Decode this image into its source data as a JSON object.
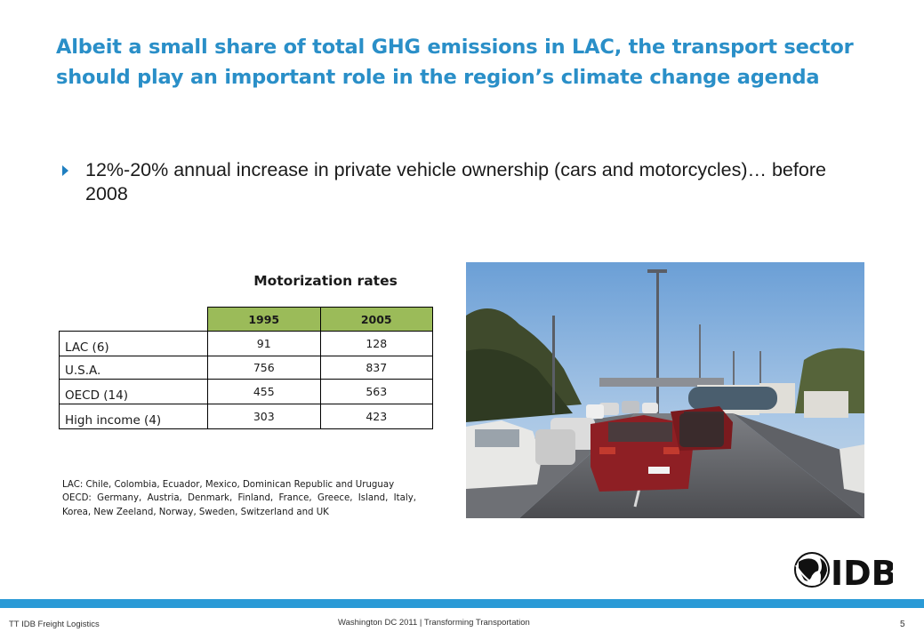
{
  "slide": {
    "title": "Albeit a small share of total GHG emissions in LAC, the transport sector should play an important role in the region’s climate change agenda",
    "bullet": "12%-20% annual increase in private vehicle ownership (cars and motorcycles)… before 2008",
    "table": {
      "title": "Motorization rates",
      "columns": [
        "1995",
        "2005"
      ],
      "rows": [
        {
          "label": "LAC (6)",
          "values": [
            "91",
            "128"
          ]
        },
        {
          "label": "U.S.A.",
          "values": [
            "756",
            "837"
          ]
        },
        {
          "label": "OECD (14)",
          "values": [
            "455",
            "563"
          ]
        },
        {
          "label": "High income (4)",
          "values": [
            "303",
            "423"
          ]
        }
      ]
    },
    "footnotes": {
      "lac": "LAC: Chile, Colombia, Ecuador, Mexico, Dominican Republic and Uruguay",
      "oecd": "OECD: Germany, Austria, Denmark, Finland, France, Greece, Island, Italy, Korea, New Zeeland, Norway, Sweden, Switzerland and UK"
    },
    "photo": {
      "subject": "traffic-congestion-photo"
    },
    "logo": {
      "text": "IDB"
    },
    "footer": {
      "left": "TT IDB Freight Logistics",
      "center": "Washington DC 2011 | Transforming Transportation",
      "page": "5"
    },
    "colors": {
      "title": "#2a8fc8",
      "header_fill": "#9bbb59",
      "footer_bar": "#2a9ad6",
      "logo": "#111111"
    }
  }
}
